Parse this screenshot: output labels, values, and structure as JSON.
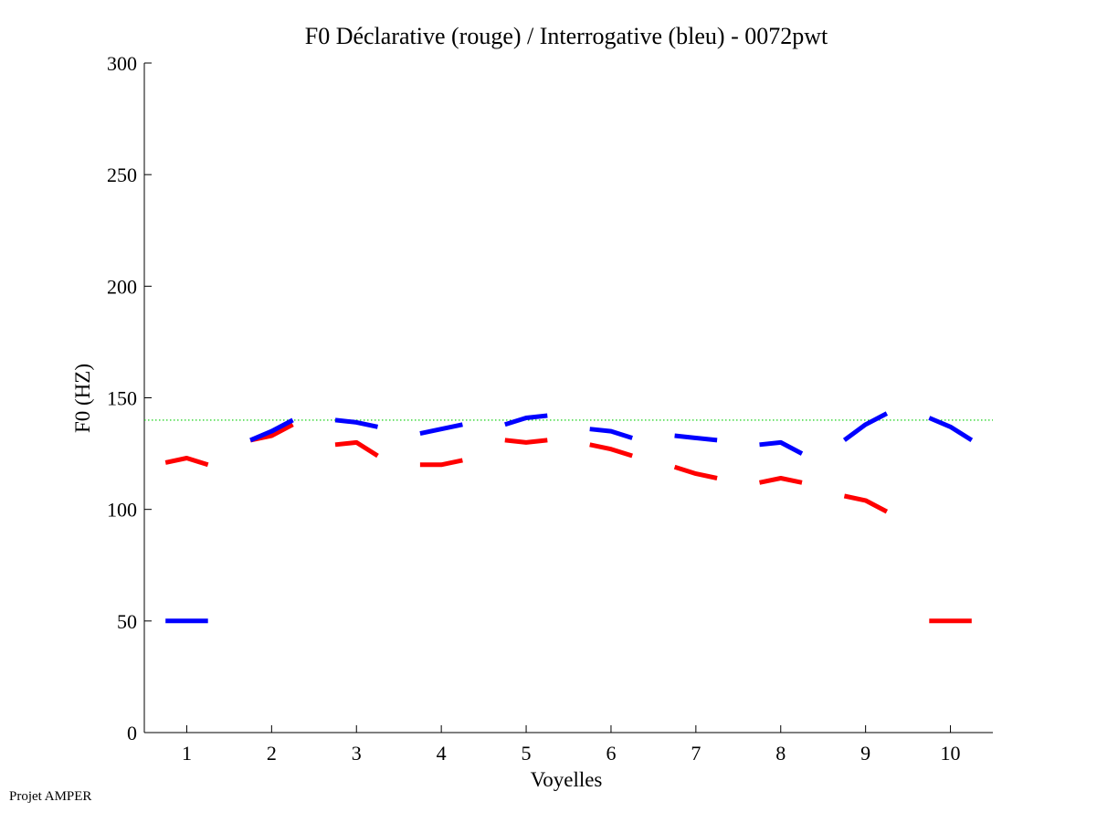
{
  "footer_text": "Projet AMPER",
  "chart_data": {
    "type": "line",
    "title": "F0 Déclarative (rouge) / Interrogative (bleu) - 0072pwt",
    "xlabel": "Voyelles",
    "ylabel": "F0 (HZ)",
    "xlim": [
      0.5,
      10.5
    ],
    "ylim": [
      0,
      300
    ],
    "xticks": [
      "1",
      "2",
      "3",
      "4",
      "5",
      "6",
      "7",
      "8",
      "9",
      "10"
    ],
    "yticks": [
      "0",
      "50",
      "100",
      "150",
      "200",
      "250",
      "300"
    ],
    "reference_line": {
      "y": 140,
      "color": "#00cc00",
      "style": "dotted"
    },
    "colors": {
      "declarative": "#ff0000",
      "interrogative": "#0000ff"
    },
    "series": [
      {
        "name": "Déclarative (rouge)",
        "color_key": "declarative",
        "segments": [
          [
            [
              0.75,
              121
            ],
            [
              1.0,
              123
            ],
            [
              1.25,
              120
            ]
          ],
          [
            [
              1.75,
              131
            ],
            [
              2.0,
              133
            ],
            [
              2.25,
              138
            ]
          ],
          [
            [
              2.75,
              129
            ],
            [
              3.0,
              130
            ],
            [
              3.25,
              124
            ]
          ],
          [
            [
              3.75,
              120
            ],
            [
              4.0,
              120
            ],
            [
              4.25,
              122
            ]
          ],
          [
            [
              4.75,
              131
            ],
            [
              5.0,
              130
            ],
            [
              5.25,
              131
            ]
          ],
          [
            [
              5.75,
              129
            ],
            [
              6.0,
              127
            ],
            [
              6.25,
              124
            ]
          ],
          [
            [
              6.75,
              119
            ],
            [
              7.0,
              116
            ],
            [
              7.25,
              114
            ]
          ],
          [
            [
              7.75,
              112
            ],
            [
              8.0,
              114
            ],
            [
              8.25,
              112
            ]
          ],
          [
            [
              8.75,
              106
            ],
            [
              9.0,
              104
            ],
            [
              9.25,
              99
            ]
          ],
          [
            [
              9.75,
              50
            ],
            [
              10.25,
              50
            ]
          ]
        ]
      },
      {
        "name": "Interrogative (bleu)",
        "color_key": "interrogative",
        "segments": [
          [
            [
              0.75,
              50
            ],
            [
              1.25,
              50
            ]
          ],
          [
            [
              1.75,
              131
            ],
            [
              2.0,
              135
            ],
            [
              2.25,
              140
            ]
          ],
          [
            [
              2.75,
              140
            ],
            [
              3.0,
              139
            ],
            [
              3.25,
              137
            ]
          ],
          [
            [
              3.75,
              134
            ],
            [
              4.0,
              136
            ],
            [
              4.25,
              138
            ]
          ],
          [
            [
              4.75,
              138
            ],
            [
              5.0,
              141
            ],
            [
              5.25,
              142
            ]
          ],
          [
            [
              5.75,
              136
            ],
            [
              6.0,
              135
            ],
            [
              6.25,
              132
            ]
          ],
          [
            [
              6.75,
              133
            ],
            [
              7.0,
              132
            ],
            [
              7.25,
              131
            ]
          ],
          [
            [
              7.75,
              129
            ],
            [
              8.0,
              130
            ],
            [
              8.25,
              125
            ]
          ],
          [
            [
              8.75,
              131
            ],
            [
              9.0,
              138
            ],
            [
              9.25,
              143
            ]
          ],
          [
            [
              9.75,
              141
            ],
            [
              10.0,
              137
            ],
            [
              10.25,
              131
            ]
          ]
        ]
      }
    ]
  }
}
